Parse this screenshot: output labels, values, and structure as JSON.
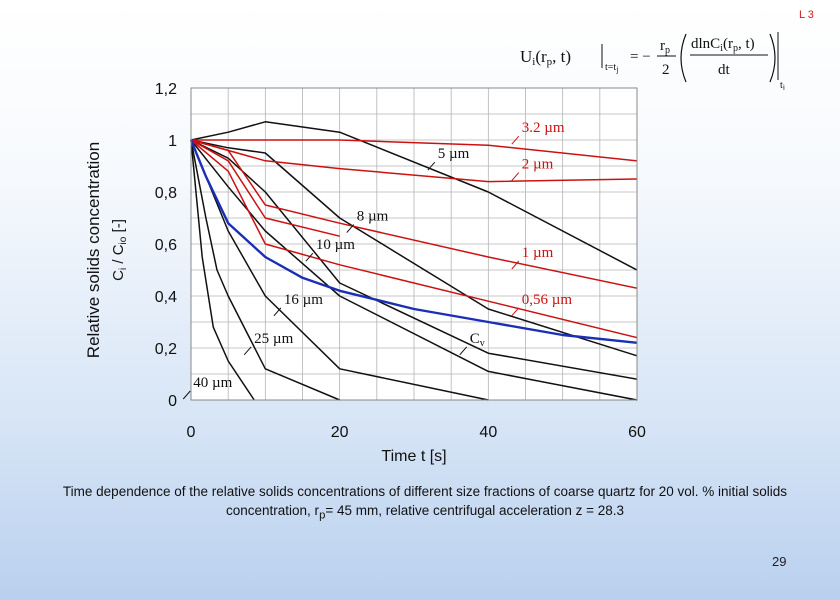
{
  "slide": {
    "corner_label": "L 3",
    "page_number": "29",
    "caption_part1": "Time dependence of the relative solids concentrations of different size fractions of coarse quartz for 20 vol. % initial solids concentration, r",
    "caption_sub": "p",
    "caption_part2": "= 45 mm, relative centrifugal acceleration z = 28.3"
  },
  "formula": {
    "lhs": "U",
    "lhs_sub": "i",
    "lhs_args": "(r",
    "lhs_args_sub": "p",
    "lhs_args_end": ", t)",
    "eval_sub": "t=t",
    "eval_sub_j": "j",
    "equals": "= −",
    "num_r": "r",
    "num_r_sub": "p",
    "den_two": "2",
    "deriv_num": "dlnC",
    "deriv_num_sub": "i",
    "deriv_num_args": "(r",
    "deriv_num_args_sub": "p",
    "deriv_num_args_end": ", t)",
    "deriv_den": "dt",
    "outer_sub": "t",
    "outer_sub_j": "j"
  },
  "colors": {
    "black_series": "#111111",
    "red_series": "#cc1111",
    "average_series": "#1a2fb5",
    "label_black": "#111111",
    "label_red": "#cc1111",
    "plot_background": "#ffffff",
    "grid": "#b4b4b4"
  },
  "chart_data": {
    "type": "line",
    "title": "",
    "xlabel": "Time t [s]",
    "ylabel_line1": "Relative solids concentration",
    "ylabel_line2": "C",
    "ylabel_line2_sub": "i",
    "ylabel_line2_mid": " / C",
    "ylabel_line2_sub2": "io",
    "ylabel_line2_end": " [-]",
    "xlim": [
      0,
      60
    ],
    "ylim": [
      0,
      1.2
    ],
    "xticks": [
      0,
      20,
      40,
      60
    ],
    "xtick_labels": [
      "0",
      "20",
      "40",
      "60"
    ],
    "yticks": [
      0,
      0.2,
      0.4,
      0.6,
      0.8,
      1.0,
      1.2
    ],
    "ytick_labels": [
      "0",
      "0,2",
      "0,4",
      "0,6",
      "0,8",
      "1",
      "1,2"
    ],
    "grid": true,
    "series": [
      {
        "name": "40 µm",
        "color": "black",
        "points": [
          [
            0,
            1.0
          ],
          [
            1.5,
            0.55
          ],
          [
            3,
            0.28
          ],
          [
            5,
            0.15
          ],
          [
            8.5,
            0.0
          ]
        ]
      },
      {
        "name": "25 µm",
        "color": "black",
        "points": [
          [
            0,
            1.0
          ],
          [
            2,
            0.7
          ],
          [
            3.5,
            0.5
          ],
          [
            5,
            0.4
          ],
          [
            10,
            0.12
          ],
          [
            20,
            0.0
          ]
        ]
      },
      {
        "name": "16 µm",
        "color": "black",
        "points": [
          [
            0,
            1.0
          ],
          [
            5,
            0.65
          ],
          [
            10,
            0.4
          ],
          [
            20,
            0.12
          ],
          [
            40,
            0.0
          ]
        ]
      },
      {
        "name": "10 µm",
        "color": "black",
        "points": [
          [
            0,
            1.0
          ],
          [
            5,
            0.82
          ],
          [
            10,
            0.65
          ],
          [
            20,
            0.4
          ],
          [
            40,
            0.11
          ],
          [
            60,
            0.0
          ]
        ]
      },
      {
        "name": "8 µm",
        "color": "black",
        "points": [
          [
            0,
            1.0
          ],
          [
            5,
            0.93
          ],
          [
            10,
            0.8
          ],
          [
            20,
            0.45
          ],
          [
            40,
            0.18
          ],
          [
            60,
            0.08
          ]
        ]
      },
      {
        "name": "5 µm",
        "color": "black",
        "points": [
          [
            0,
            1.0
          ],
          [
            5,
            0.97
          ],
          [
            10,
            0.95
          ],
          [
            20,
            0.7
          ],
          [
            40,
            0.35
          ],
          [
            60,
            0.17
          ]
        ]
      },
      {
        "name": "",
        "color": "black",
        "points": [
          [
            0,
            1.0
          ],
          [
            5,
            1.03
          ],
          [
            10,
            1.07
          ],
          [
            20,
            1.03
          ],
          [
            40,
            0.8
          ],
          [
            60,
            0.5
          ]
        ]
      },
      {
        "name": "3.2 µm",
        "color": "red",
        "points": [
          [
            0,
            1.0
          ],
          [
            20,
            1.0
          ],
          [
            40,
            0.98
          ],
          [
            60,
            0.92
          ]
        ]
      },
      {
        "name": "2 µm",
        "color": "red",
        "points": [
          [
            0,
            1.0
          ],
          [
            10,
            0.92
          ],
          [
            20,
            0.89
          ],
          [
            40,
            0.84
          ],
          [
            60,
            0.85
          ]
        ]
      },
      {
        "name": "1 µm",
        "color": "red",
        "points": [
          [
            0,
            1.0
          ],
          [
            5,
            0.96
          ],
          [
            10,
            0.75
          ],
          [
            20,
            0.68
          ],
          [
            40,
            0.55
          ],
          [
            60,
            0.43
          ]
        ]
      },
      {
        "name": "0.56 µm",
        "color": "red",
        "points": [
          [
            0,
            1.0
          ],
          [
            5,
            0.88
          ],
          [
            10,
            0.6
          ],
          [
            20,
            0.52
          ],
          [
            40,
            0.38
          ],
          [
            60,
            0.24
          ]
        ]
      },
      {
        "name": "",
        "color": "red",
        "points": [
          [
            0,
            1.0
          ],
          [
            5,
            0.92
          ],
          [
            10,
            0.7
          ],
          [
            20,
            0.63
          ]
        ]
      },
      {
        "name": "Cv",
        "color": "blue",
        "points": [
          [
            0,
            1.0
          ],
          [
            2,
            0.86
          ],
          [
            5,
            0.68
          ],
          [
            10,
            0.55
          ],
          [
            15,
            0.47
          ],
          [
            20,
            0.42
          ],
          [
            30,
            0.35
          ],
          [
            40,
            0.3
          ],
          [
            50,
            0.25
          ],
          [
            60,
            0.22
          ]
        ]
      }
    ],
    "labels": [
      {
        "text": "40 µm",
        "x": 0.3,
        "y": 0.05,
        "color": "black"
      },
      {
        "text": "25 µm",
        "x": 8.5,
        "y": 0.22,
        "color": "black"
      },
      {
        "text": "16 µm",
        "x": 12.5,
        "y": 0.37,
        "color": "black"
      },
      {
        "text": "10 µm",
        "x": 16.8,
        "y": 0.58,
        "color": "black"
      },
      {
        "text": "8 µm",
        "x": 22.3,
        "y": 0.69,
        "color": "black"
      },
      {
        "text": "5 µm",
        "x": 33.2,
        "y": 0.93,
        "color": "black"
      },
      {
        "text": "3.2 µm",
        "x": 44.5,
        "y": 1.03,
        "color": "red"
      },
      {
        "text": "2 µm",
        "x": 44.5,
        "y": 0.89,
        "color": "red"
      },
      {
        "text": "1 µm",
        "x": 44.5,
        "y": 0.55,
        "color": "red"
      },
      {
        "text": "0,56 µm",
        "x": 44.5,
        "y": 0.37,
        "color": "red"
      },
      {
        "text": "C",
        "text_sub": "v",
        "x": 37.5,
        "y": 0.22,
        "color": "black"
      }
    ]
  }
}
